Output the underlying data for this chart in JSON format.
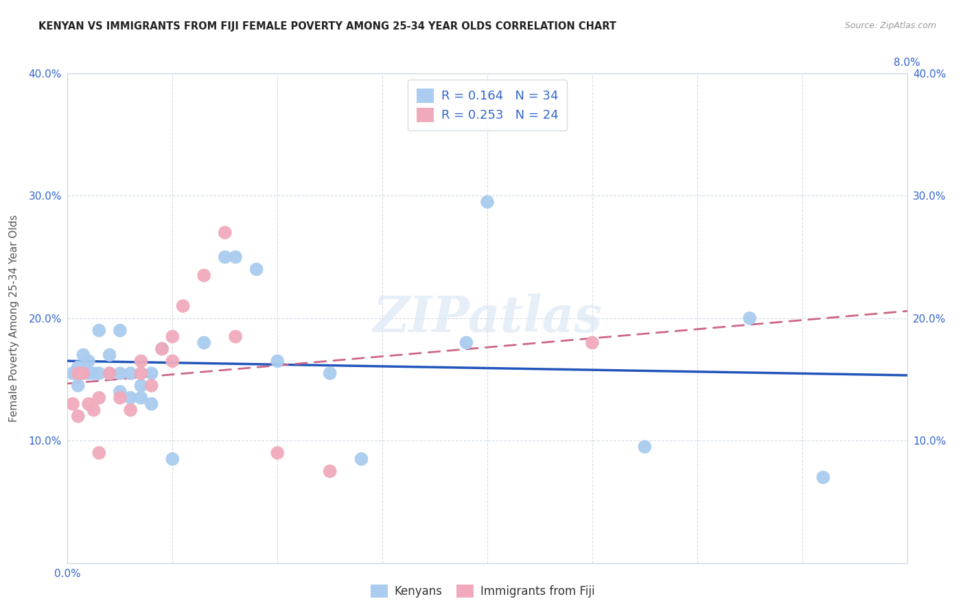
{
  "title": "KENYAN VS IMMIGRANTS FROM FIJI FEMALE POVERTY AMONG 25-34 YEAR OLDS CORRELATION CHART",
  "source": "Source: ZipAtlas.com",
  "ylabel": "Female Poverty Among 25-34 Year Olds",
  "x_min": 0.0,
  "x_max": 0.08,
  "y_min": 0.0,
  "y_max": 0.4,
  "x_ticks": [
    0.0,
    0.01,
    0.02,
    0.03,
    0.04,
    0.05,
    0.06,
    0.07,
    0.08
  ],
  "x_tick_labels_left": [
    "0.0%",
    "",
    "",
    "",
    "",
    "",
    "",
    "",
    ""
  ],
  "x_tick_labels_right": [
    "",
    "",
    "",
    "",
    "",
    "",
    "",
    "",
    "8.0%"
  ],
  "y_ticks": [
    0.0,
    0.1,
    0.2,
    0.3,
    0.4
  ],
  "y_tick_labels": [
    "",
    "10.0%",
    "20.0%",
    "30.0%",
    "40.0%"
  ],
  "kenyan_color": "#aaccf0",
  "fiji_color": "#f0aabb",
  "kenyan_line_color": "#2255bb",
  "fiji_line_color": "#cc6688",
  "kenyan_R": 0.164,
  "kenyan_N": 34,
  "fiji_R": 0.253,
  "fiji_N": 24,
  "kenyan_x": [
    0.0005,
    0.001,
    0.001,
    0.0015,
    0.002,
    0.002,
    0.0025,
    0.003,
    0.003,
    0.004,
    0.004,
    0.005,
    0.005,
    0.005,
    0.006,
    0.006,
    0.007,
    0.007,
    0.008,
    0.008,
    0.009,
    0.01,
    0.013,
    0.015,
    0.016,
    0.018,
    0.02,
    0.025,
    0.028,
    0.038,
    0.04,
    0.055,
    0.065,
    0.072
  ],
  "kenyan_y": [
    0.155,
    0.16,
    0.145,
    0.17,
    0.155,
    0.165,
    0.155,
    0.155,
    0.19,
    0.155,
    0.17,
    0.155,
    0.14,
    0.19,
    0.155,
    0.135,
    0.145,
    0.135,
    0.155,
    0.13,
    0.175,
    0.085,
    0.18,
    0.25,
    0.25,
    0.24,
    0.165,
    0.155,
    0.085,
    0.18,
    0.295,
    0.095,
    0.2,
    0.07
  ],
  "fiji_x": [
    0.0005,
    0.001,
    0.001,
    0.0015,
    0.002,
    0.0025,
    0.003,
    0.003,
    0.004,
    0.005,
    0.006,
    0.007,
    0.007,
    0.008,
    0.009,
    0.01,
    0.01,
    0.011,
    0.013,
    0.015,
    0.016,
    0.02,
    0.025,
    0.05
  ],
  "fiji_y": [
    0.13,
    0.12,
    0.155,
    0.155,
    0.13,
    0.125,
    0.135,
    0.09,
    0.155,
    0.135,
    0.125,
    0.165,
    0.155,
    0.145,
    0.175,
    0.185,
    0.165,
    0.21,
    0.235,
    0.27,
    0.185,
    0.09,
    0.075,
    0.18
  ]
}
